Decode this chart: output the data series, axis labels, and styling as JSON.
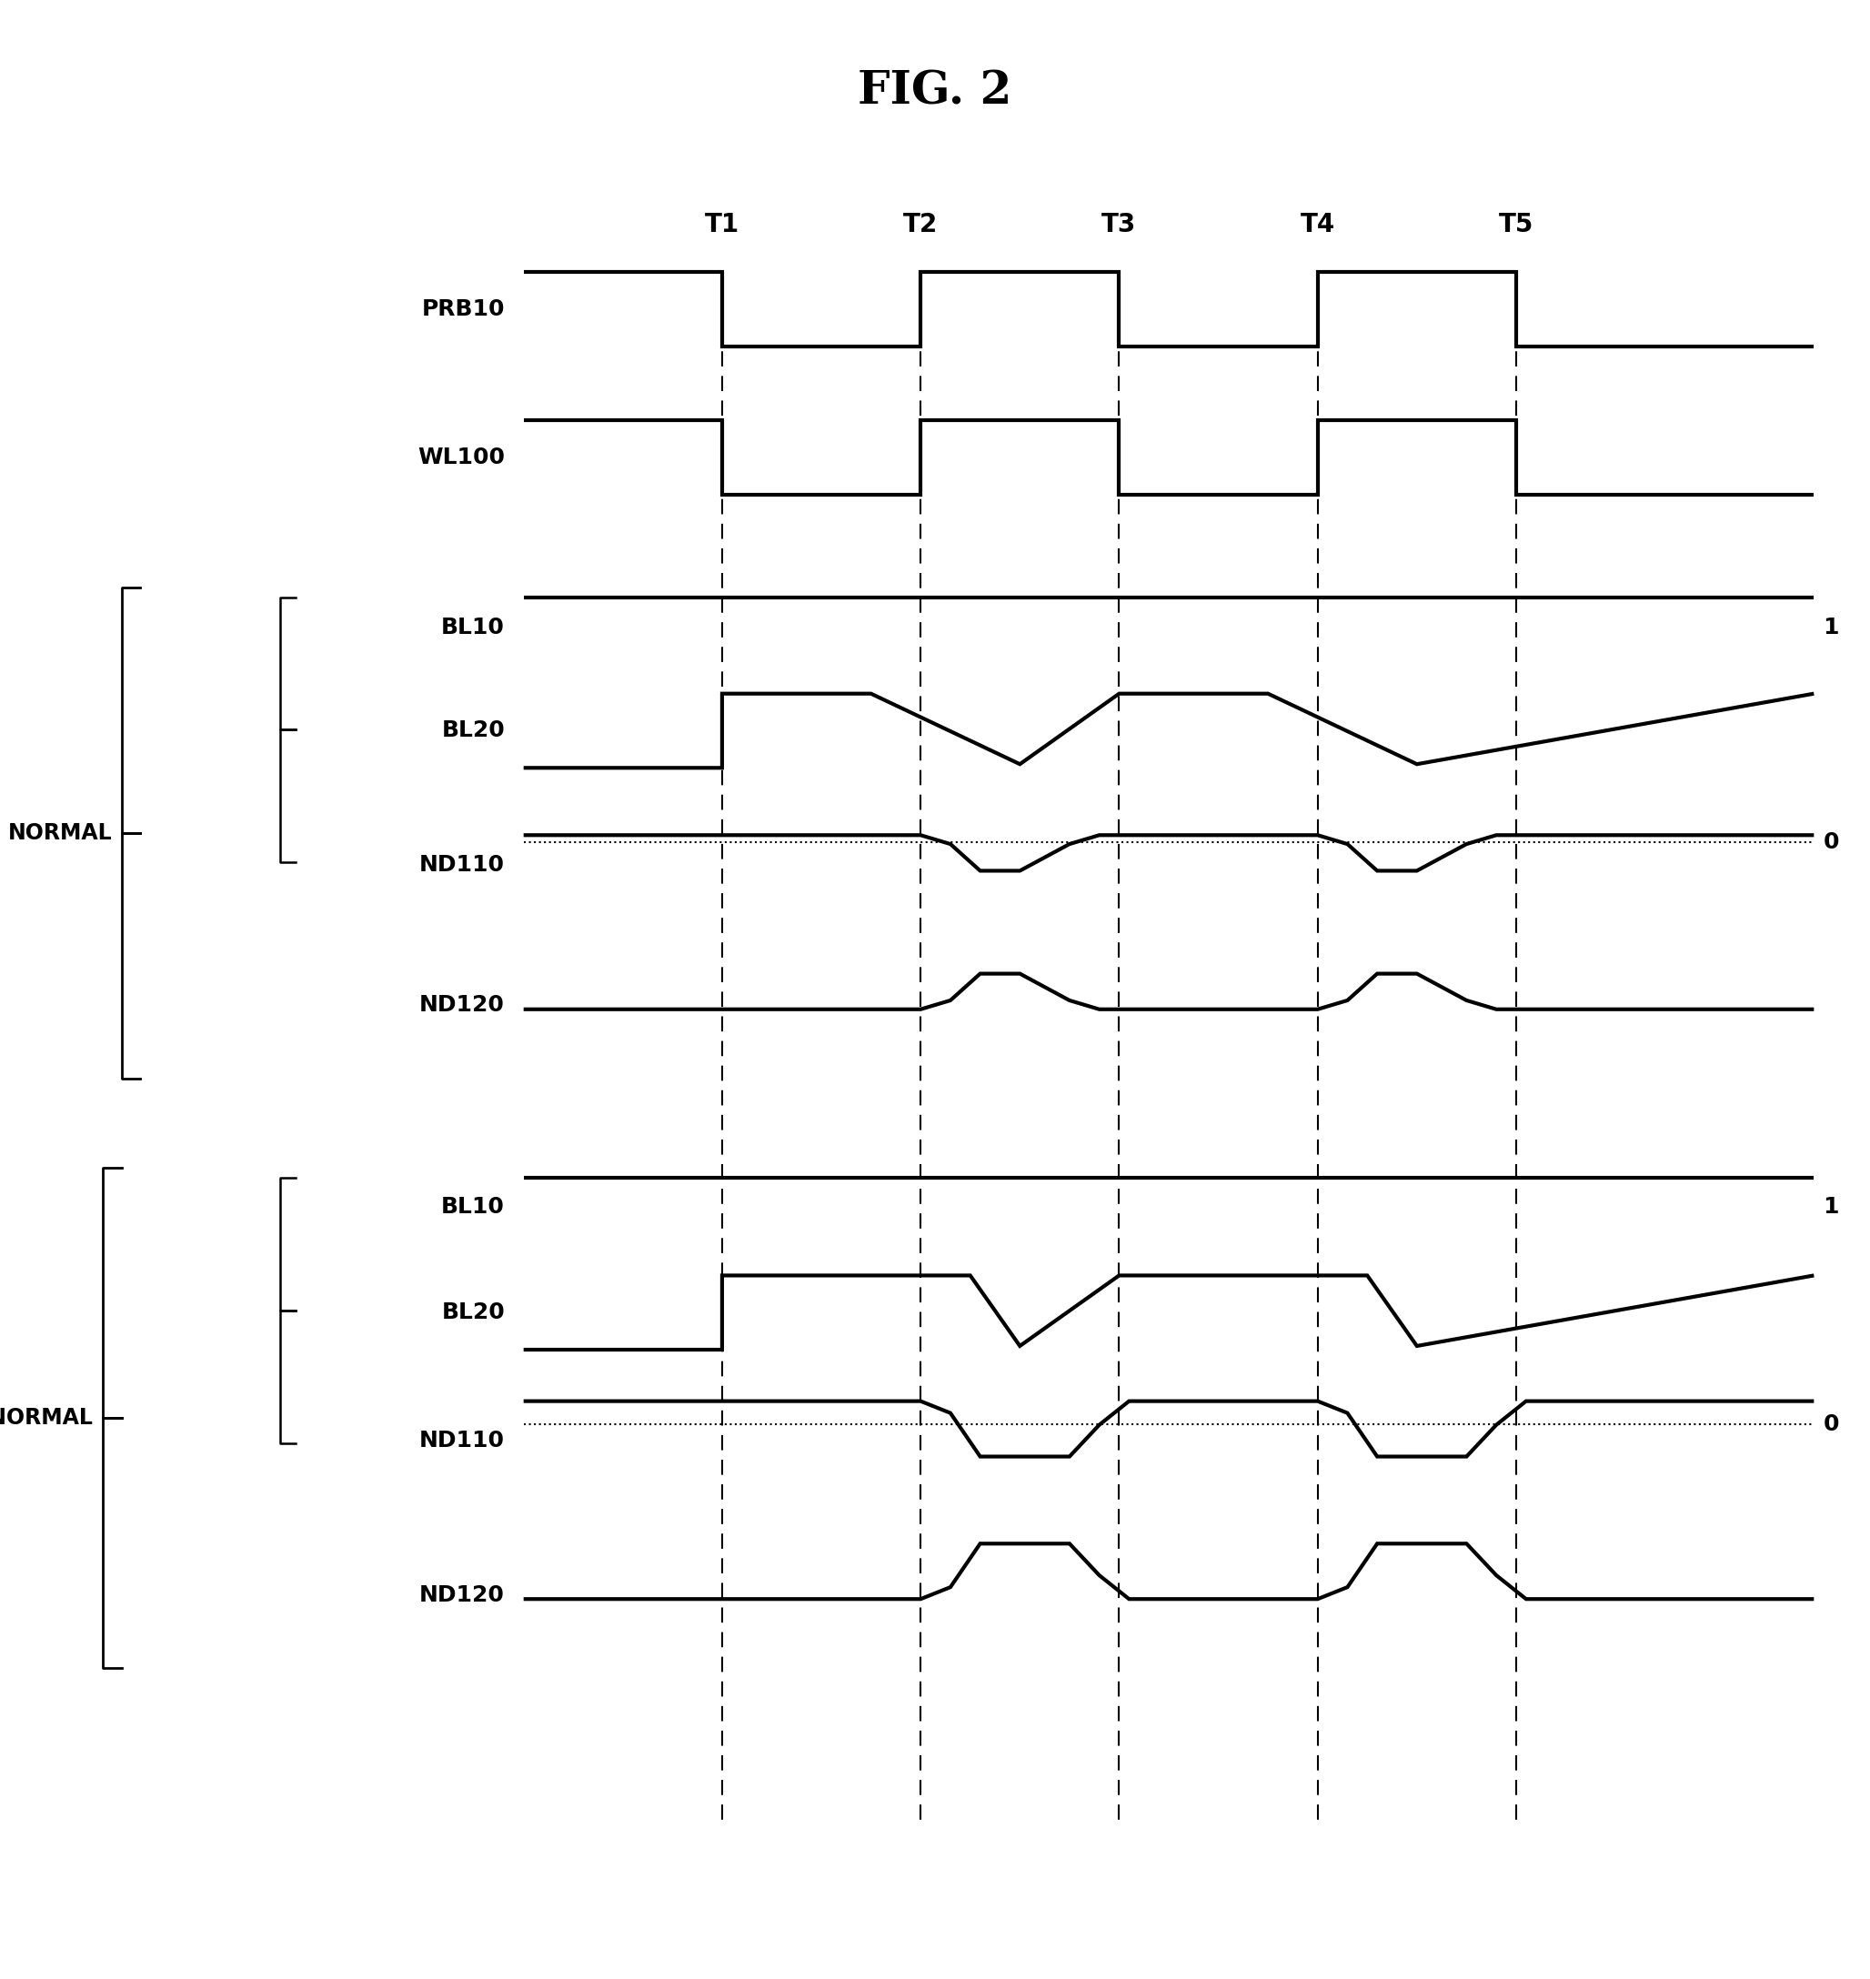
{
  "title": "FIG. 2",
  "title_fontsize": 36,
  "background_color": "#ffffff",
  "line_color": "#000000",
  "time_labels": [
    "T1",
    "T2",
    "T3",
    "T4",
    "T5"
  ],
  "time_positions": [
    2,
    4,
    6,
    8,
    10
  ],
  "signal_label_fontsize": 18,
  "axis_label_fontsize": 16,
  "total_time": 13,
  "signals": {
    "PRB10": {
      "x": [
        0,
        2,
        2,
        4,
        4,
        6,
        6,
        8,
        8,
        10,
        10,
        13
      ],
      "y": [
        1,
        1,
        0,
        0,
        1,
        1,
        0,
        0,
        1,
        1,
        0,
        0
      ]
    },
    "WL100": {
      "x": [
        0,
        2,
        2,
        4,
        4,
        6,
        6,
        8,
        8,
        10,
        10,
        13
      ],
      "y": [
        1,
        1,
        0,
        0,
        1,
        1,
        0,
        0,
        1,
        1,
        0,
        0
      ]
    },
    "BL10_N": {
      "x": [
        0,
        13
      ],
      "y": [
        1,
        1
      ]
    },
    "BL20_N": {
      "x": [
        0,
        2,
        2,
        3.5,
        5,
        5,
        6,
        7.5,
        9,
        9,
        13
      ],
      "y": [
        0,
        0,
        1,
        1,
        0.05,
        0.05,
        1,
        1,
        0.05,
        0.05,
        1
      ]
    },
    "BL20_N_dotted": {
      "x": [
        0,
        13
      ],
      "y": [
        0,
        0
      ]
    },
    "ND110_N": {
      "x": [
        0,
        4,
        4.3,
        4.6,
        5.0,
        5.5,
        5.8,
        6,
        8,
        8.3,
        8.6,
        9.0,
        9.5,
        9.8,
        10,
        13
      ],
      "y": [
        1,
        1,
        0.85,
        0.4,
        0.4,
        0.85,
        1.0,
        1,
        1,
        0.85,
        0.4,
        0.4,
        0.85,
        1.0,
        1,
        1
      ]
    },
    "ND120_N": {
      "x": [
        0,
        4,
        4.3,
        4.6,
        5.0,
        5.5,
        5.8,
        6,
        8,
        8.3,
        8.6,
        9.0,
        9.5,
        9.8,
        10,
        13
      ],
      "y": [
        0,
        0,
        0.15,
        0.6,
        0.6,
        0.15,
        0.0,
        0,
        0,
        0.15,
        0.6,
        0.6,
        0.15,
        0.0,
        0,
        0
      ]
    },
    "BL10_A": {
      "x": [
        0,
        13
      ],
      "y": [
        1,
        1
      ]
    },
    "BL20_A": {
      "x": [
        0,
        2,
        2,
        4.5,
        5,
        5,
        6,
        8.5,
        9,
        9,
        13
      ],
      "y": [
        0,
        0,
        1,
        1,
        0.05,
        0.05,
        1,
        1,
        0.05,
        0.05,
        1
      ]
    },
    "BL20_A_dotted": {
      "x": [
        0,
        13
      ],
      "y": [
        0,
        0
      ]
    },
    "ND110_A": {
      "x": [
        0,
        4,
        4.3,
        4.6,
        5.5,
        5.8,
        6.1,
        8,
        8.3,
        8.6,
        9.5,
        9.8,
        10.1,
        13
      ],
      "y": [
        1,
        1,
        0.85,
        0.3,
        0.3,
        0.7,
        1.0,
        1,
        0.85,
        0.3,
        0.3,
        0.7,
        1.0,
        1
      ]
    },
    "ND120_A": {
      "x": [
        0,
        4,
        4.3,
        4.6,
        5.5,
        5.8,
        6.1,
        8,
        8.3,
        8.6,
        9.5,
        9.8,
        10.1,
        13
      ],
      "y": [
        0,
        0,
        0.15,
        0.7,
        0.7,
        0.3,
        0.0,
        0,
        0.15,
        0.7,
        0.7,
        0.3,
        0.0,
        0
      ]
    }
  }
}
